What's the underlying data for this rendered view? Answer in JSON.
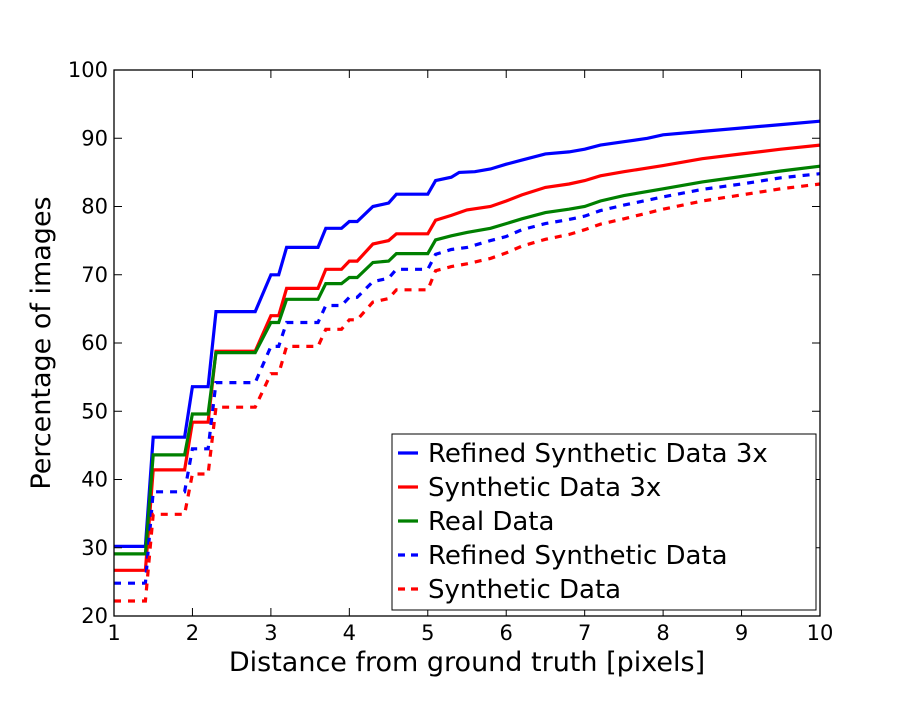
{
  "chart_data": {
    "type": "line",
    "title": "",
    "xlabel": "Distance from ground truth [pixels]",
    "ylabel": "Percentage of images",
    "xlim": [
      1,
      10
    ],
    "ylim": [
      20,
      100
    ],
    "xticks": [
      1,
      2,
      3,
      4,
      5,
      6,
      7,
      8,
      9,
      10
    ],
    "yticks": [
      20,
      30,
      40,
      50,
      60,
      70,
      80,
      90,
      100
    ],
    "grid": false,
    "legend_position": "bottom-right",
    "series": [
      {
        "name": "Refined Synthetic Data 3x",
        "color": "#0000ff",
        "dash": "solid",
        "points": [
          [
            1,
            30.2
          ],
          [
            1.4,
            30.2
          ],
          [
            1.5,
            46.2
          ],
          [
            1.9,
            46.2
          ],
          [
            2.0,
            53.6
          ],
          [
            2.2,
            53.6
          ],
          [
            2.3,
            64.6
          ],
          [
            2.8,
            64.6
          ],
          [
            3.0,
            70
          ],
          [
            3.1,
            70
          ],
          [
            3.2,
            74
          ],
          [
            3.6,
            74
          ],
          [
            3.7,
            76.8
          ],
          [
            3.9,
            76.8
          ],
          [
            4.0,
            77.8
          ],
          [
            4.1,
            77.8
          ],
          [
            4.3,
            80
          ],
          [
            4.5,
            80.5
          ],
          [
            4.6,
            81.8
          ],
          [
            5.0,
            81.8
          ],
          [
            5.1,
            83.8
          ],
          [
            5.3,
            84.3
          ],
          [
            5.4,
            85.0
          ],
          [
            5.6,
            85.1
          ],
          [
            5.8,
            85.5
          ],
          [
            6.0,
            86.2
          ],
          [
            6.2,
            86.8
          ],
          [
            6.5,
            87.7
          ],
          [
            6.8,
            88.0
          ],
          [
            7.0,
            88.4
          ],
          [
            7.2,
            89.0
          ],
          [
            7.5,
            89.5
          ],
          [
            7.8,
            90.0
          ],
          [
            8.0,
            90.5
          ],
          [
            8.5,
            91.0
          ],
          [
            9.0,
            91.5
          ],
          [
            9.5,
            92.0
          ],
          [
            10.0,
            92.5
          ]
        ]
      },
      {
        "name": "Synthetic Data 3x",
        "color": "#ff0000",
        "dash": "solid",
        "points": [
          [
            1,
            26.7
          ],
          [
            1.4,
            26.7
          ],
          [
            1.5,
            41.4
          ],
          [
            1.9,
            41.4
          ],
          [
            2.0,
            48.4
          ],
          [
            2.2,
            48.4
          ],
          [
            2.3,
            58.8
          ],
          [
            2.8,
            58.8
          ],
          [
            3.0,
            64.0
          ],
          [
            3.1,
            64.0
          ],
          [
            3.2,
            68.0
          ],
          [
            3.6,
            68.0
          ],
          [
            3.7,
            70.8
          ],
          [
            3.9,
            70.8
          ],
          [
            4.0,
            72.0
          ],
          [
            4.1,
            72.0
          ],
          [
            4.3,
            74.5
          ],
          [
            4.5,
            75.0
          ],
          [
            4.6,
            76.0
          ],
          [
            5.0,
            76.0
          ],
          [
            5.1,
            78.0
          ],
          [
            5.3,
            78.7
          ],
          [
            5.5,
            79.5
          ],
          [
            5.8,
            80.0
          ],
          [
            6.0,
            80.8
          ],
          [
            6.2,
            81.7
          ],
          [
            6.5,
            82.8
          ],
          [
            6.8,
            83.3
          ],
          [
            7.0,
            83.8
          ],
          [
            7.2,
            84.5
          ],
          [
            7.5,
            85.1
          ],
          [
            8.0,
            86.0
          ],
          [
            8.5,
            87.0
          ],
          [
            9.0,
            87.7
          ],
          [
            9.5,
            88.4
          ],
          [
            10.0,
            89.0
          ]
        ]
      },
      {
        "name": "Real Data",
        "color": "#008000",
        "dash": "solid",
        "points": [
          [
            1,
            29.1
          ],
          [
            1.4,
            29.1
          ],
          [
            1.5,
            43.6
          ],
          [
            1.9,
            43.6
          ],
          [
            2.0,
            49.6
          ],
          [
            2.2,
            49.6
          ],
          [
            2.3,
            58.6
          ],
          [
            2.8,
            58.6
          ],
          [
            3.0,
            63.0
          ],
          [
            3.1,
            63.0
          ],
          [
            3.2,
            66.4
          ],
          [
            3.6,
            66.4
          ],
          [
            3.7,
            68.7
          ],
          [
            3.9,
            68.7
          ],
          [
            4.0,
            69.6
          ],
          [
            4.1,
            69.6
          ],
          [
            4.3,
            71.8
          ],
          [
            4.5,
            72.0
          ],
          [
            4.6,
            73.1
          ],
          [
            5.0,
            73.1
          ],
          [
            5.1,
            75.1
          ],
          [
            5.3,
            75.7
          ],
          [
            5.5,
            76.2
          ],
          [
            5.8,
            76.8
          ],
          [
            6.0,
            77.5
          ],
          [
            6.2,
            78.2
          ],
          [
            6.5,
            79.1
          ],
          [
            6.8,
            79.6
          ],
          [
            7.0,
            80.0
          ],
          [
            7.2,
            80.8
          ],
          [
            7.5,
            81.6
          ],
          [
            8.0,
            82.6
          ],
          [
            8.5,
            83.6
          ],
          [
            9.0,
            84.4
          ],
          [
            9.5,
            85.2
          ],
          [
            10.0,
            85.9
          ]
        ]
      },
      {
        "name": "Refined Synthetic Data",
        "color": "#0000ff",
        "dash": "dashed",
        "points": [
          [
            1,
            24.8
          ],
          [
            1.4,
            24.8
          ],
          [
            1.5,
            38.2
          ],
          [
            1.9,
            38.2
          ],
          [
            2.0,
            44.5
          ],
          [
            2.2,
            44.5
          ],
          [
            2.3,
            54.2
          ],
          [
            2.8,
            54.2
          ],
          [
            3.0,
            59.5
          ],
          [
            3.1,
            59.5
          ],
          [
            3.2,
            63.0
          ],
          [
            3.6,
            63.0
          ],
          [
            3.7,
            65.5
          ],
          [
            3.9,
            65.5
          ],
          [
            4.0,
            66.7
          ],
          [
            4.1,
            66.7
          ],
          [
            4.3,
            69.0
          ],
          [
            4.5,
            69.5
          ],
          [
            4.6,
            70.8
          ],
          [
            5.0,
            70.8
          ],
          [
            5.1,
            73.0
          ],
          [
            5.3,
            73.7
          ],
          [
            5.5,
            74.0
          ],
          [
            5.8,
            75.0
          ],
          [
            6.0,
            75.6
          ],
          [
            6.2,
            76.6
          ],
          [
            6.5,
            77.5
          ],
          [
            6.8,
            78.1
          ],
          [
            7.0,
            78.6
          ],
          [
            7.2,
            79.4
          ],
          [
            7.5,
            80.2
          ],
          [
            8.0,
            81.4
          ],
          [
            8.5,
            82.5
          ],
          [
            9.0,
            83.3
          ],
          [
            9.5,
            84.2
          ],
          [
            10.0,
            84.8
          ]
        ]
      },
      {
        "name": "Synthetic Data",
        "color": "#ff0000",
        "dash": "dashed",
        "points": [
          [
            1,
            22.2
          ],
          [
            1.4,
            22.2
          ],
          [
            1.5,
            34.9
          ],
          [
            1.9,
            34.9
          ],
          [
            2.0,
            40.8
          ],
          [
            2.2,
            40.8
          ],
          [
            2.3,
            50.6
          ],
          [
            2.8,
            50.6
          ],
          [
            3.0,
            55.5
          ],
          [
            3.1,
            55.5
          ],
          [
            3.2,
            59.5
          ],
          [
            3.6,
            59.5
          ],
          [
            3.7,
            62.0
          ],
          [
            3.9,
            62.0
          ],
          [
            4.0,
            63.4
          ],
          [
            4.1,
            63.4
          ],
          [
            4.3,
            66.0
          ],
          [
            4.5,
            66.5
          ],
          [
            4.6,
            67.8
          ],
          [
            5.0,
            67.8
          ],
          [
            5.1,
            70.6
          ],
          [
            5.3,
            71.2
          ],
          [
            5.5,
            71.6
          ],
          [
            5.8,
            72.4
          ],
          [
            6.0,
            73.2
          ],
          [
            6.2,
            74.2
          ],
          [
            6.5,
            75.2
          ],
          [
            6.8,
            75.9
          ],
          [
            7.0,
            76.6
          ],
          [
            7.2,
            77.4
          ],
          [
            7.5,
            78.2
          ],
          [
            8.0,
            79.6
          ],
          [
            8.5,
            80.8
          ],
          [
            9.0,
            81.7
          ],
          [
            9.5,
            82.6
          ],
          [
            10.0,
            83.3
          ]
        ]
      }
    ]
  }
}
